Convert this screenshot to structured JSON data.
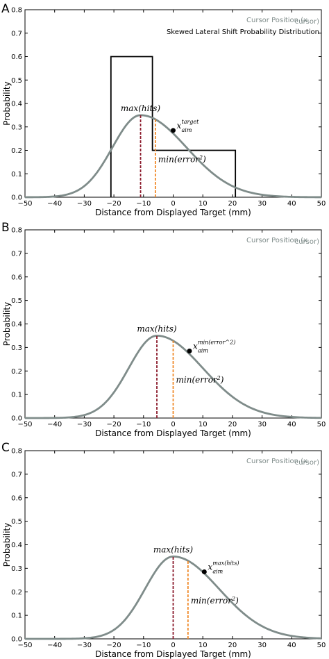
{
  "chart_data": [
    {
      "type": "line",
      "panel_label": "A",
      "xlabel": "Distance from Displayed Target (mm)",
      "ylabel": "Probability",
      "xlim": [
        -50,
        50
      ],
      "ylim": [
        0,
        0.8
      ],
      "xticks": [
        -50,
        -40,
        -30,
        -20,
        -10,
        0,
        10,
        20,
        30,
        40,
        50
      ],
      "yticks": [
        0.0,
        0.1,
        0.2,
        0.3,
        0.4,
        0.5,
        0.6,
        0.7,
        0.8
      ],
      "legend": {
        "placement": "top-right",
        "entries": [
          "Cursor Position (x_cursor)",
          "Skewed Lateral Shift Probability Distribution"
        ]
      },
      "series": [
        {
          "name": "Cursor Position (x_cursor)",
          "color": "#7f8c8a",
          "curve_center": 0,
          "x": [
            -50,
            -40,
            -30,
            -20,
            -15,
            -10,
            -5,
            0,
            5,
            10,
            20,
            30,
            40,
            50
          ],
          "y": [
            0.0,
            0.01,
            0.05,
            0.19,
            0.3,
            0.35,
            0.335,
            0.28,
            0.22,
            0.18,
            0.09,
            0.03,
            0.01,
            0.0
          ]
        },
        {
          "name": "Skewed Lateral Shift Probability Distribution",
          "color": "#000000",
          "type": "step",
          "x": [
            -21,
            -21,
            -7,
            -7,
            21,
            21
          ],
          "y": [
            0,
            0.6,
            0.6,
            0.2,
            0.2,
            0
          ]
        }
      ],
      "vlines": [
        {
          "x": -11,
          "color": "#8b1a2b",
          "label": "max(hits)"
        },
        {
          "x": -6,
          "color": "#f08a2a",
          "label": "min(error^2)"
        }
      ],
      "point": {
        "x": 0,
        "y": 0.285,
        "label_main": "x",
        "label_sup": "target",
        "label_sub": "aim"
      }
    },
    {
      "type": "line",
      "panel_label": "B",
      "xlabel": "Distance from Displayed Target (mm)",
      "ylabel": "Probability",
      "xlim": [
        -50,
        50
      ],
      "ylim": [
        0,
        0.8
      ],
      "xticks": [
        -50,
        -40,
        -30,
        -20,
        -10,
        0,
        10,
        20,
        30,
        40,
        50
      ],
      "yticks": [
        0.0,
        0.1,
        0.2,
        0.3,
        0.4,
        0.5,
        0.6,
        0.7,
        0.8
      ],
      "legend": {
        "placement": "top-right",
        "entries": [
          "Cursor Position (x_cursor)"
        ]
      },
      "series": [
        {
          "name": "Cursor Position (x_cursor)",
          "color": "#7f8c8a",
          "curve_center": 5.5,
          "x": [
            -50,
            -40,
            -30,
            -20,
            -10,
            -5,
            0,
            5,
            10,
            20,
            30,
            40,
            50
          ],
          "y": [
            0.0,
            0.005,
            0.03,
            0.12,
            0.3,
            0.35,
            0.33,
            0.285,
            0.24,
            0.15,
            0.06,
            0.02,
            0.0
          ]
        }
      ],
      "vlines": [
        {
          "x": -5.5,
          "color": "#8b1a2b",
          "label": "max(hits)"
        },
        {
          "x": 0,
          "color": "#f08a2a",
          "label": "min(error^2)"
        }
      ],
      "point": {
        "x": 5.5,
        "y": 0.285,
        "label_main": "x",
        "label_sup": "min(error^2)",
        "label_sub": "aim"
      }
    },
    {
      "type": "line",
      "panel_label": "C",
      "xlabel": "Distance from Displayed Target (mm)",
      "ylabel": "Probability",
      "xlim": [
        -50,
        50
      ],
      "ylim": [
        0,
        0.8
      ],
      "xticks": [
        -50,
        -40,
        -30,
        -20,
        -10,
        0,
        10,
        20,
        30,
        40,
        50
      ],
      "yticks": [
        0.0,
        0.1,
        0.2,
        0.3,
        0.4,
        0.5,
        0.6,
        0.7,
        0.8
      ],
      "legend": {
        "placement": "top-right",
        "entries": [
          "Cursor Position (x_cursor)"
        ]
      },
      "series": [
        {
          "name": "Cursor Position (x_cursor)",
          "color": "#7f8c8a",
          "curve_center": 11,
          "x": [
            -50,
            -40,
            -30,
            -20,
            -10,
            0,
            5,
            10,
            15,
            20,
            30,
            40,
            50
          ],
          "y": [
            0.0,
            0.0,
            0.01,
            0.06,
            0.2,
            0.35,
            0.33,
            0.285,
            0.24,
            0.2,
            0.1,
            0.03,
            0.005
          ]
        }
      ],
      "vlines": [
        {
          "x": 0,
          "color": "#8b1a2b",
          "label": "max(hits)"
        },
        {
          "x": 5,
          "color": "#f08a2a",
          "label": "min(error^2)"
        }
      ],
      "point": {
        "x": 10.5,
        "y": 0.285,
        "label_main": "x",
        "label_sup": "max(hits)",
        "label_sub": "aim"
      }
    }
  ]
}
